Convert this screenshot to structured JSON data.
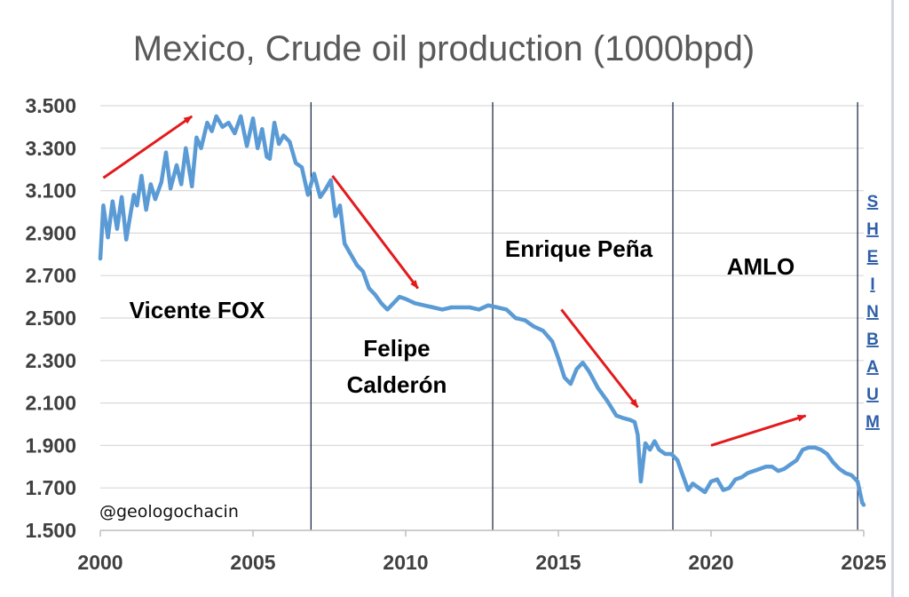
{
  "chart_data": {
    "type": "line",
    "title": "Mexico, Crude oil production (1000bpd)",
    "xlabel": "",
    "ylabel": "",
    "xlim": [
      2000,
      2025
    ],
    "ylim": [
      1500,
      3500
    ],
    "x_ticks": [
      "2000",
      "2005",
      "2010",
      "2015",
      "2020",
      "2025"
    ],
    "y_ticks": [
      "1.500",
      "1.700",
      "1.900",
      "2.100",
      "2.300",
      "2.500",
      "2.700",
      "2.900",
      "3.100",
      "3.300",
      "3.500"
    ],
    "grid": "horizontal",
    "line_color": "#5b9bd5",
    "arrow_color": "#e31a1c",
    "series": [
      {
        "x": [
          2000.0,
          2000.1,
          2000.25,
          2000.4,
          2000.55,
          2000.7,
          2000.85,
          2001.0,
          2001.1,
          2001.2,
          2001.35,
          2001.5,
          2001.65,
          2001.8,
          2002.0,
          2002.15,
          2002.3,
          2002.5,
          2002.65,
          2002.8,
          2003.0,
          2003.15,
          2003.3,
          2003.5,
          2003.65,
          2003.8,
          2004.0,
          2004.2,
          2004.4,
          2004.6,
          2004.8,
          2005.0,
          2005.15,
          2005.3,
          2005.45,
          2005.55,
          2005.7,
          2005.85,
          2006.0,
          2006.2,
          2006.4,
          2006.6,
          2006.8,
          2007.0,
          2007.2,
          2007.35,
          2007.55,
          2007.7,
          2007.85,
          2008.0,
          2008.2,
          2008.4,
          2008.6,
          2008.8,
          2009.0,
          2009.2,
          2009.4,
          2009.6,
          2009.8,
          2010.0,
          2010.3,
          2010.6,
          2010.9,
          2011.2,
          2011.5,
          2011.8,
          2012.1,
          2012.4,
          2012.7,
          2013.0,
          2013.3,
          2013.6,
          2013.9,
          2014.2,
          2014.5,
          2014.8,
          2015.0,
          2015.2,
          2015.4,
          2015.6,
          2015.8,
          2016.0,
          2016.3,
          2016.6,
          2016.9,
          2017.1,
          2017.35,
          2017.5,
          2017.6,
          2017.7,
          2017.85,
          2018.0,
          2018.15,
          2018.3,
          2018.5,
          2018.7,
          2018.9,
          2019.1,
          2019.25,
          2019.4,
          2019.6,
          2019.8,
          2020.0,
          2020.2,
          2020.4,
          2020.6,
          2020.8,
          2021.0,
          2021.2,
          2021.4,
          2021.6,
          2021.8,
          2022.0,
          2022.2,
          2022.4,
          2022.6,
          2022.8,
          2023.0,
          2023.2,
          2023.4,
          2023.6,
          2023.8,
          2024.0,
          2024.2,
          2024.4,
          2024.6,
          2024.8,
          2024.95,
          2025.0
        ],
        "values": [
          2780,
          3030,
          2880,
          3050,
          2920,
          3070,
          2870,
          3000,
          3080,
          3030,
          3170,
          3010,
          3130,
          3060,
          3140,
          3280,
          3110,
          3220,
          3130,
          3300,
          3120,
          3350,
          3300,
          3420,
          3380,
          3450,
          3400,
          3420,
          3370,
          3450,
          3310,
          3440,
          3300,
          3390,
          3260,
          3250,
          3420,
          3320,
          3360,
          3330,
          3230,
          3210,
          3080,
          3180,
          3070,
          3100,
          3150,
          2980,
          3030,
          2850,
          2800,
          2750,
          2720,
          2640,
          2610,
          2570,
          2540,
          2570,
          2600,
          2590,
          2570,
          2560,
          2550,
          2540,
          2550,
          2550,
          2550,
          2540,
          2560,
          2550,
          2540,
          2500,
          2490,
          2460,
          2440,
          2390,
          2310,
          2220,
          2190,
          2260,
          2290,
          2250,
          2170,
          2110,
          2040,
          2030,
          2020,
          2010,
          1950,
          1730,
          1910,
          1880,
          1920,
          1880,
          1860,
          1860,
          1830,
          1750,
          1690,
          1720,
          1700,
          1680,
          1730,
          1740,
          1690,
          1700,
          1740,
          1750,
          1770,
          1780,
          1790,
          1800,
          1800,
          1780,
          1790,
          1810,
          1830,
          1880,
          1890,
          1890,
          1880,
          1860,
          1820,
          1790,
          1770,
          1760,
          1730,
          1630,
          1620
        ]
      }
    ],
    "annotations": {
      "eras": [
        "Vicente FOX",
        "Felipe",
        "Calderón",
        "Enrique Peña",
        "AMLO"
      ],
      "vertical_name": [
        "S",
        "H",
        "E",
        "I",
        "N",
        "B",
        "A",
        "U",
        "M"
      ],
      "credit": "@geologochacin",
      "period_dividers": [
        2006.9,
        2012.85,
        2018.75,
        2024.8
      ],
      "trend_arrows": [
        {
          "from": [
            2000.1,
            3160
          ],
          "to": [
            2003.0,
            3450
          ]
        },
        {
          "from": [
            2007.6,
            3170
          ],
          "to": [
            2010.4,
            2640
          ]
        },
        {
          "from": [
            2015.1,
            2540
          ],
          "to": [
            2017.6,
            2080
          ]
        },
        {
          "from": [
            2020.0,
            1900
          ],
          "to": [
            2023.1,
            2040
          ]
        }
      ]
    }
  }
}
